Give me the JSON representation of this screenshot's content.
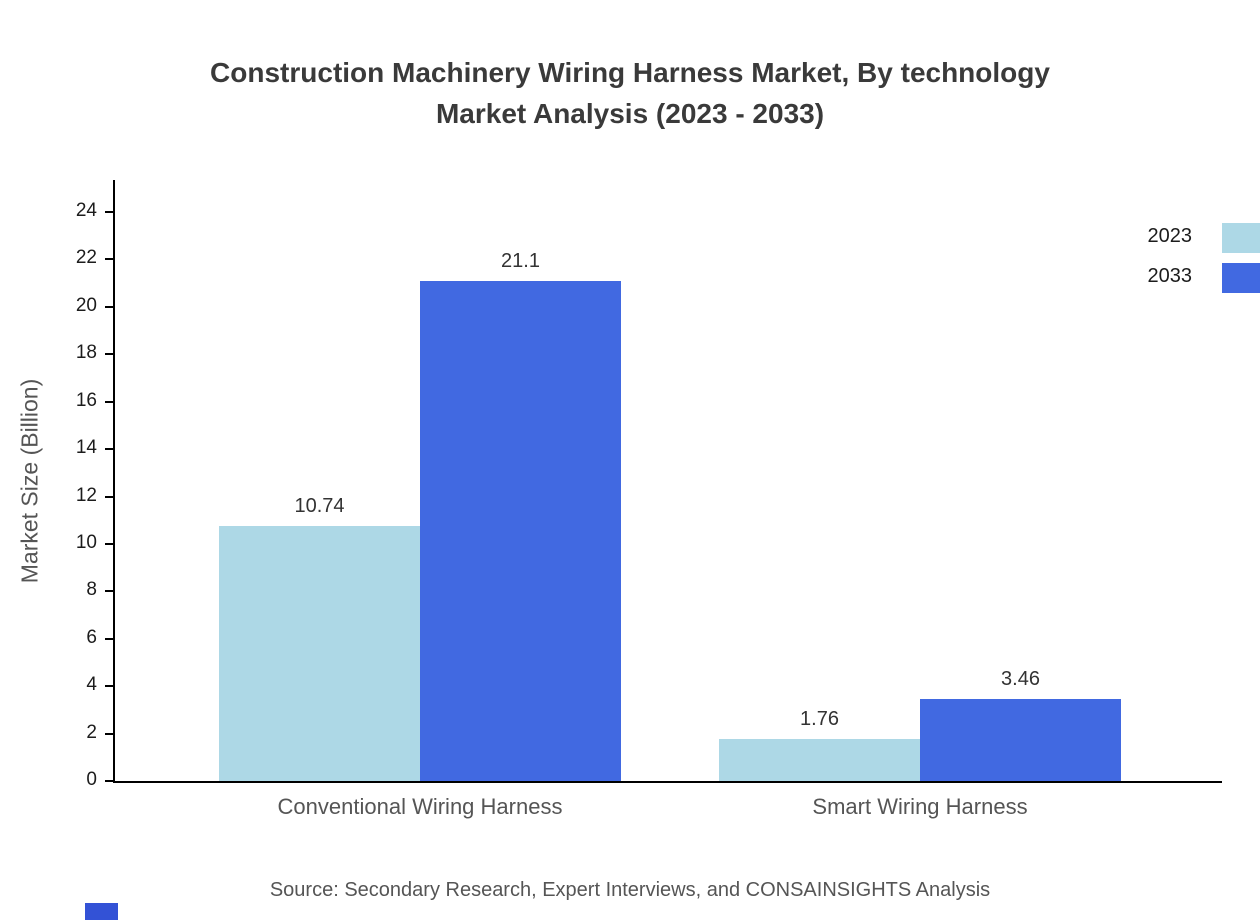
{
  "chart_data": {
    "type": "bar",
    "title": "Construction Machinery Wiring Harness Market, By technology Market Analysis (2023 - 2033)",
    "title_lines": [
      "Construction Machinery Wiring Harness Market, By technology",
      "Market Analysis (2023 - 2033)"
    ],
    "categories": [
      "Conventional Wiring Harness",
      "Smart Wiring Harness"
    ],
    "series": [
      {
        "name": "2023",
        "color": "#ADD8E6",
        "values": [
          10.74,
          1.76
        ]
      },
      {
        "name": "2033",
        "color": "#4169E1",
        "values": [
          21.1,
          3.46
        ]
      }
    ],
    "value_labels": [
      "10.74",
      "21.1",
      "1.76",
      "3.46"
    ],
    "xlabel": "",
    "ylabel": "Market Size (Billion)",
    "ylim": [
      0,
      24
    ],
    "ytick_step": 2,
    "grid": false,
    "legend_position": "top-right",
    "source": "Source: Secondary Research, Expert Interviews, and CONSAINSIGHTS Analysis"
  },
  "colors": {
    "brand_mark": "#3352D6",
    "axis": "#000000",
    "title_text": "#3a3a3a",
    "muted_text": "#555555"
  }
}
